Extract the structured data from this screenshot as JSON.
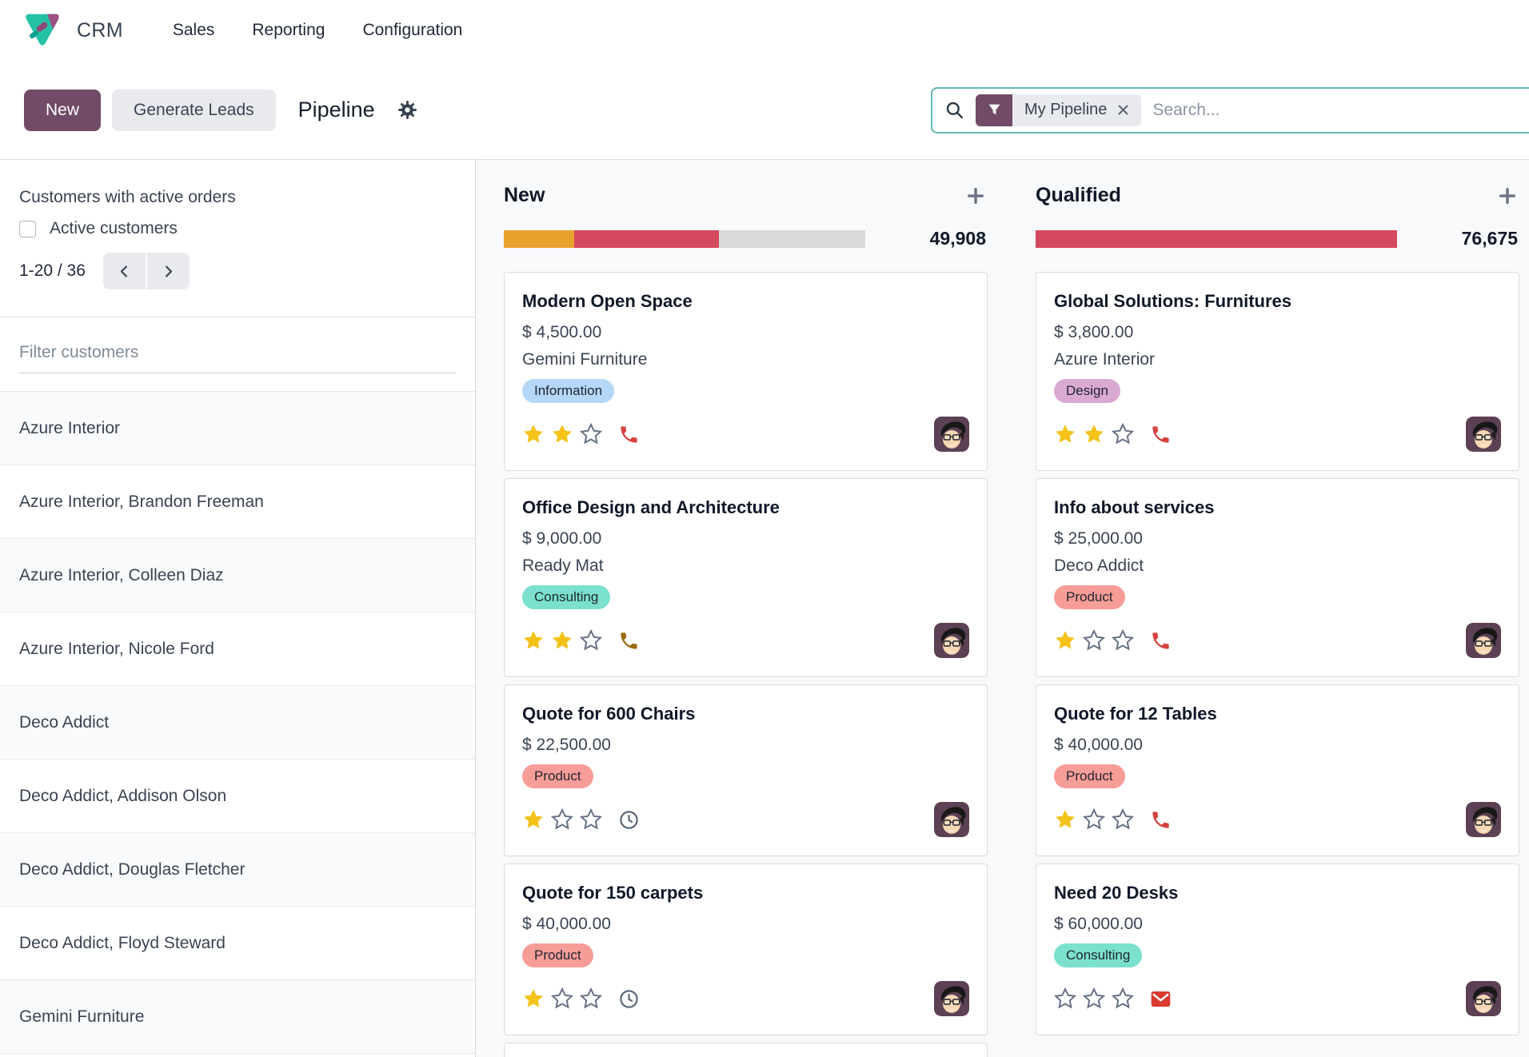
{
  "nav": {
    "app_name": "CRM",
    "menus": [
      "Sales",
      "Reporting",
      "Configuration"
    ]
  },
  "control_panel": {
    "new_button": "New",
    "generate_leads_button": "Generate Leads",
    "breadcrumb": "Pipeline",
    "search": {
      "facet_label": "My Pipeline",
      "placeholder": "Search..."
    }
  },
  "sidebar": {
    "heading": "Customers with active orders",
    "checkbox_label": "Active customers",
    "checkbox_checked": false,
    "pager": "1-20 / 36",
    "filter_placeholder": "Filter customers",
    "customers": [
      "Azure Interior",
      "Azure Interior, Brandon Freeman",
      "Azure Interior, Colleen Diaz",
      "Azure Interior, Nicole Ford",
      "Deco Addict",
      "Deco Addict, Addison Olson",
      "Deco Addict, Douglas Fletcher",
      "Deco Addict, Floyd Steward",
      "Gemini Furniture"
    ]
  },
  "board": {
    "columns": [
      {
        "name": "New",
        "total": "49,908",
        "progress": [
          {
            "color": "#e8a12d",
            "pct": 19.5
          },
          {
            "color": "#d5495e",
            "pct": 40
          },
          {
            "color": "#d9d9d9",
            "pct": 40.5
          }
        ],
        "partial_card": true,
        "cards": [
          {
            "title": "Modern Open Space",
            "amount": "$ 4,500.00",
            "company": "Gemini Furniture",
            "tag": "Information",
            "tag_color": "#b5d7f8",
            "stars": 2,
            "activity": "phone",
            "activity_color": "#d5433e"
          },
          {
            "title": "Office Design and Architecture",
            "amount": "$ 9,000.00",
            "company": "Ready Mat",
            "tag": "Consulting",
            "tag_color": "#7be1ce",
            "stars": 2,
            "activity": "phone",
            "activity_color": "#9a6b0e"
          },
          {
            "title": "Quote for 600 Chairs",
            "amount": "$ 22,500.00",
            "company": "",
            "tag": "Product",
            "tag_color": "#f79d98",
            "stars": 1,
            "activity": "clock",
            "activity_color": "#5d6878"
          },
          {
            "title": "Quote for 150 carpets",
            "amount": "$ 40,000.00",
            "company": "",
            "tag": "Product",
            "tag_color": "#f79d98",
            "stars": 1,
            "activity": "clock",
            "activity_color": "#5d6878"
          }
        ]
      },
      {
        "name": "Qualified",
        "total": "76,675",
        "progress": [
          {
            "color": "#d5495e",
            "pct": 100
          }
        ],
        "partial_card": false,
        "cards": [
          {
            "title": "Global Solutions: Furnitures",
            "amount": "$ 3,800.00",
            "company": "Azure Interior",
            "tag": "Design",
            "tag_color": "#d9a9d2",
            "stars": 2,
            "activity": "phone",
            "activity_color": "#d5433e"
          },
          {
            "title": "Info about services",
            "amount": "$ 25,000.00",
            "company": "Deco Addict",
            "tag": "Product",
            "tag_color": "#f79d98",
            "stars": 1,
            "activity": "phone",
            "activity_color": "#d5433e"
          },
          {
            "title": "Quote for 12 Tables",
            "amount": "$ 40,000.00",
            "company": "",
            "tag": "Product",
            "tag_color": "#f79d98",
            "stars": 1,
            "activity": "phone",
            "activity_color": "#d5433e"
          },
          {
            "title": "Need 20 Desks",
            "amount": "$ 60,000.00",
            "company": "",
            "tag": "Consulting",
            "tag_color": "#7be1ce",
            "stars": 0,
            "activity": "envelope",
            "activity_color": "#da3b30"
          }
        ]
      }
    ]
  },
  "colors": {
    "brand": "#714B67",
    "search_border": "#65b7b4",
    "kanban_bg": "#f8f9fa",
    "card_border": "#d9dbde",
    "star_filled": "#f4c218",
    "star_empty": "#667085"
  }
}
